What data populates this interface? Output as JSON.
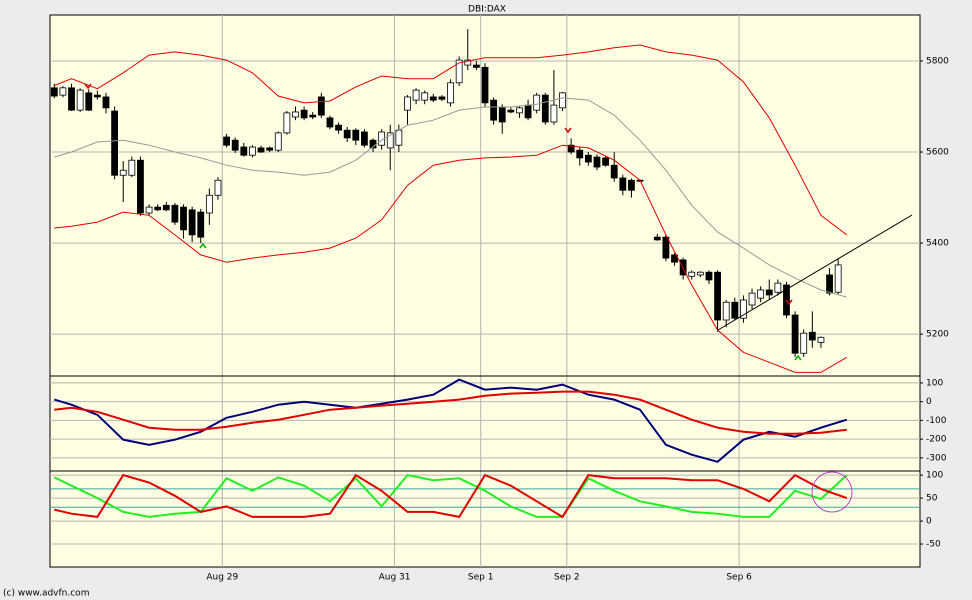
{
  "footer": "(c) www.advfn.com",
  "chart_data": [
    {
      "type": "candlestick",
      "title": "DBI:DAX",
      "grid": true,
      "up_color": "#ffffff",
      "down_color": "#000000",
      "ylim": [
        5108,
        5901
      ],
      "yticks": [
        5200,
        5400,
        5600,
        5800
      ],
      "ohlc": [
        [
          5741,
          5750,
          5718,
          5723
        ],
        [
          5725,
          5745,
          5720,
          5741
        ],
        [
          5741,
          5750,
          5690,
          5692
        ],
        [
          5692,
          5740,
          5688,
          5736
        ],
        [
          5730,
          5738,
          5690,
          5692
        ],
        [
          5725,
          5735,
          5715,
          5721
        ],
        [
          5721,
          5730,
          5685,
          5697
        ],
        [
          5690,
          5700,
          5540,
          5549
        ],
        [
          5549,
          5580,
          5490,
          5560
        ],
        [
          5549,
          5590,
          5545,
          5582
        ],
        [
          5582,
          5590,
          5460,
          5466
        ],
        [
          5466,
          5485,
          5460,
          5479
        ],
        [
          5479,
          5485,
          5470,
          5473
        ],
        [
          5483,
          5490,
          5470,
          5473
        ],
        [
          5483,
          5488,
          5440,
          5446
        ],
        [
          5479,
          5485,
          5410,
          5429
        ],
        [
          5473,
          5480,
          5402,
          5418
        ],
        [
          5468,
          5475,
          5400,
          5413
        ],
        [
          5466,
          5520,
          5440,
          5505
        ],
        [
          5505,
          5545,
          5495,
          5538
        ],
        [
          5633,
          5640,
          5610,
          5615
        ],
        [
          5626,
          5632,
          5598,
          5604
        ],
        [
          5611,
          5620,
          5590,
          5593
        ],
        [
          5593,
          5615,
          5588,
          5611
        ],
        [
          5609,
          5614,
          5598,
          5600
        ],
        [
          5609,
          5612,
          5600,
          5604
        ],
        [
          5604,
          5645,
          5600,
          5642
        ],
        [
          5642,
          5690,
          5638,
          5686
        ],
        [
          5677,
          5700,
          5670,
          5688
        ],
        [
          5692,
          5700,
          5670,
          5675
        ],
        [
          5681,
          5688,
          5672,
          5677
        ],
        [
          5721,
          5730,
          5675,
          5681
        ],
        [
          5675,
          5680,
          5650,
          5655
        ],
        [
          5659,
          5665,
          5640,
          5648
        ],
        [
          5648,
          5655,
          5622,
          5631
        ],
        [
          5648,
          5652,
          5615,
          5626
        ],
        [
          5644,
          5650,
          5610,
          5615
        ],
        [
          5626,
          5630,
          5600,
          5609
        ],
        [
          5615,
          5650,
          5605,
          5644
        ],
        [
          5609,
          5660,
          5560,
          5642
        ],
        [
          5615,
          5660,
          5600,
          5648
        ],
        [
          5692,
          5725,
          5660,
          5721
        ],
        [
          5714,
          5740,
          5705,
          5736
        ],
        [
          5714,
          5735,
          5705,
          5730
        ],
        [
          5721,
          5728,
          5710,
          5714
        ],
        [
          5721,
          5725,
          5712,
          5716
        ],
        [
          5708,
          5760,
          5700,
          5752
        ],
        [
          5752,
          5810,
          5745,
          5802
        ],
        [
          5791,
          5870,
          5780,
          5802
        ],
        [
          5791,
          5800,
          5780,
          5786
        ],
        [
          5786,
          5795,
          5700,
          5708
        ],
        [
          5714,
          5720,
          5660,
          5670
        ],
        [
          5697,
          5705,
          5640,
          5666
        ],
        [
          5692,
          5698,
          5685,
          5688
        ],
        [
          5686,
          5700,
          5675,
          5697
        ],
        [
          5703,
          5715,
          5670,
          5675
        ],
        [
          5692,
          5730,
          5685,
          5725
        ],
        [
          5725,
          5730,
          5660,
          5666
        ],
        [
          5666,
          5780,
          5660,
          5703
        ],
        [
          5697,
          5732,
          5690,
          5730
        ],
        [
          5615,
          5630,
          5595,
          5600
        ],
        [
          5604,
          5610,
          5570,
          5587
        ],
        [
          5593,
          5600,
          5570,
          5578
        ],
        [
          5589,
          5595,
          5560,
          5567
        ],
        [
          5587,
          5592,
          5568,
          5571
        ],
        [
          5571,
          5600,
          5535,
          5543
        ],
        [
          5543,
          5550,
          5505,
          5516
        ],
        [
          5538,
          5542,
          5500,
          5516
        ],
        [
          5538,
          5540,
          5535,
          5537
        ],
        null,
        [
          5413,
          5420,
          5405,
          5407
        ],
        [
          5413,
          5418,
          5360,
          5367
        ],
        [
          5374,
          5378,
          5350,
          5358
        ],
        [
          5363,
          5368,
          5320,
          5330
        ],
        [
          5327,
          5340,
          5320,
          5336
        ],
        [
          5330,
          5338,
          5325,
          5336
        ],
        [
          5336,
          5340,
          5310,
          5319
        ],
        [
          5336,
          5340,
          5205,
          5231
        ],
        [
          5231,
          5275,
          5215,
          5270
        ],
        [
          5270,
          5280,
          5230,
          5235
        ],
        [
          5235,
          5285,
          5225,
          5275
        ],
        [
          5264,
          5300,
          5255,
          5290
        ],
        [
          5279,
          5305,
          5270,
          5297
        ],
        [
          5297,
          5320,
          5275,
          5286
        ],
        [
          5292,
          5320,
          5285,
          5312
        ],
        [
          5308,
          5315,
          5235,
          5242
        ],
        [
          5242,
          5250,
          5150,
          5158
        ],
        [
          5158,
          5210,
          5150,
          5202
        ],
        [
          5204,
          5250,
          5170,
          5187
        ],
        [
          5182,
          5195,
          5170,
          5193
        ],
        [
          5330,
          5345,
          5285,
          5290
        ],
        [
          5292,
          5365,
          5288,
          5352
        ]
      ],
      "x": [
        0,
        2,
        5,
        8,
        11,
        14,
        17,
        20,
        23,
        26,
        29,
        32,
        35,
        38,
        41,
        44,
        47,
        50,
        53,
        56,
        59,
        62,
        65,
        68,
        71,
        74,
        77,
        80,
        83,
        86,
        89,
        92
      ],
      "series": [
        {
          "color": "#e00000",
          "values": [
            5746,
            5761,
            5739,
            5774,
            5813,
            5820,
            5813,
            5802,
            5774,
            5723,
            5708,
            5712,
            5743,
            5767,
            5761,
            5761,
            5796,
            5807,
            5807,
            5807,
            5813,
            5820,
            5829,
            5835,
            5820,
            5813,
            5802,
            5754,
            5675,
            5571,
            5461,
            5418
          ]
        },
        {
          "color": "#e00000",
          "values": [
            5433,
            5437,
            5446,
            5468,
            5461,
            5418,
            5374,
            5358,
            5367,
            5374,
            5380,
            5389,
            5411,
            5451,
            5527,
            5571,
            5582,
            5587,
            5589,
            5593,
            5615,
            5609,
            5582,
            5538,
            5418,
            5308,
            5209,
            5160,
            5138,
            5116,
            5116,
            5149
          ]
        },
        {
          "color": "#999999",
          "values": [
            5589,
            5600,
            5622,
            5626,
            5615,
            5600,
            5587,
            5571,
            5560,
            5556,
            5549,
            5556,
            5582,
            5626,
            5659,
            5670,
            5692,
            5699,
            5699,
            5705,
            5719,
            5714,
            5681,
            5626,
            5560,
            5483,
            5424,
            5389,
            5352,
            5323,
            5297,
            5281
          ]
        }
      ]
    },
    {
      "type": "line",
      "grid": true,
      "ylim": [
        -370,
        137
      ],
      "yticks": [
        100,
        0,
        -100,
        -200,
        -300
      ],
      "x": [
        0,
        2,
        5,
        8,
        11,
        14,
        17,
        20,
        23,
        26,
        29,
        32,
        35,
        38,
        41,
        44,
        47,
        50,
        53,
        56,
        59,
        62,
        65,
        68,
        71,
        74,
        77,
        80,
        83,
        86,
        89,
        92
      ],
      "series": [
        {
          "color": "#00007a",
          "values": [
            11,
            -16,
            -70,
            -203,
            -230,
            -203,
            -161,
            -86,
            -54,
            -16,
            0,
            -16,
            -32,
            -11,
            11,
            37,
            118,
            64,
            75,
            64,
            91,
            37,
            11,
            -43,
            -230,
            -283,
            -321,
            -203,
            -161,
            -187,
            -139,
            -96
          ]
        },
        {
          "color": "#e00000",
          "values": [
            -43,
            -32,
            -54,
            -96,
            -139,
            -150,
            -150,
            -134,
            -112,
            -96,
            -70,
            -43,
            -32,
            -21,
            -11,
            0,
            11,
            32,
            43,
            48,
            54,
            54,
            37,
            11,
            -43,
            -96,
            -139,
            -161,
            -171,
            -171,
            -166,
            -150
          ]
        }
      ]
    },
    {
      "type": "line",
      "grid": true,
      "ylim": [
        -100,
        109
      ],
      "yticks": [
        100,
        50,
        0,
        -50
      ],
      "reference_lines": [
        70,
        30
      ],
      "reference_color": "#3aa6a6",
      "xlim": [
        0,
        101
      ],
      "xticks": [
        {
          "value": 20,
          "label": "Aug 29"
        },
        {
          "value": 40,
          "label": "Aug 31"
        },
        {
          "value": 50,
          "label": "Sep 1"
        },
        {
          "value": 60,
          "label": "Sep 2"
        },
        {
          "value": 80,
          "label": "Sep 6"
        }
      ],
      "x": [
        0,
        2,
        5,
        8,
        11,
        14,
        17,
        20,
        23,
        26,
        29,
        32,
        35,
        38,
        41,
        44,
        47,
        50,
        53,
        56,
        59,
        62,
        65,
        68,
        71,
        74,
        77,
        80,
        83,
        86,
        89,
        92
      ],
      "series": [
        {
          "color": "#22ee22",
          "values": [
            95,
            77,
            50,
            20,
            9,
            16,
            20,
            93,
            66,
            95,
            77,
            43,
            93,
            32,
            100,
            89,
            93,
            66,
            32,
            9,
            9,
            93,
            66,
            43,
            32,
            20,
            16,
            9,
            9,
            66,
            48,
            100
          ]
        },
        {
          "color": "#e00000",
          "values": [
            25,
            16,
            9,
            100,
            84,
            55,
            20,
            32,
            9,
            9,
            9,
            16,
            100,
            66,
            20,
            20,
            9,
            100,
            77,
            43,
            9,
            100,
            93,
            93,
            93,
            89,
            89,
            70,
            43,
            100,
            70,
            50
          ]
        }
      ]
    }
  ]
}
